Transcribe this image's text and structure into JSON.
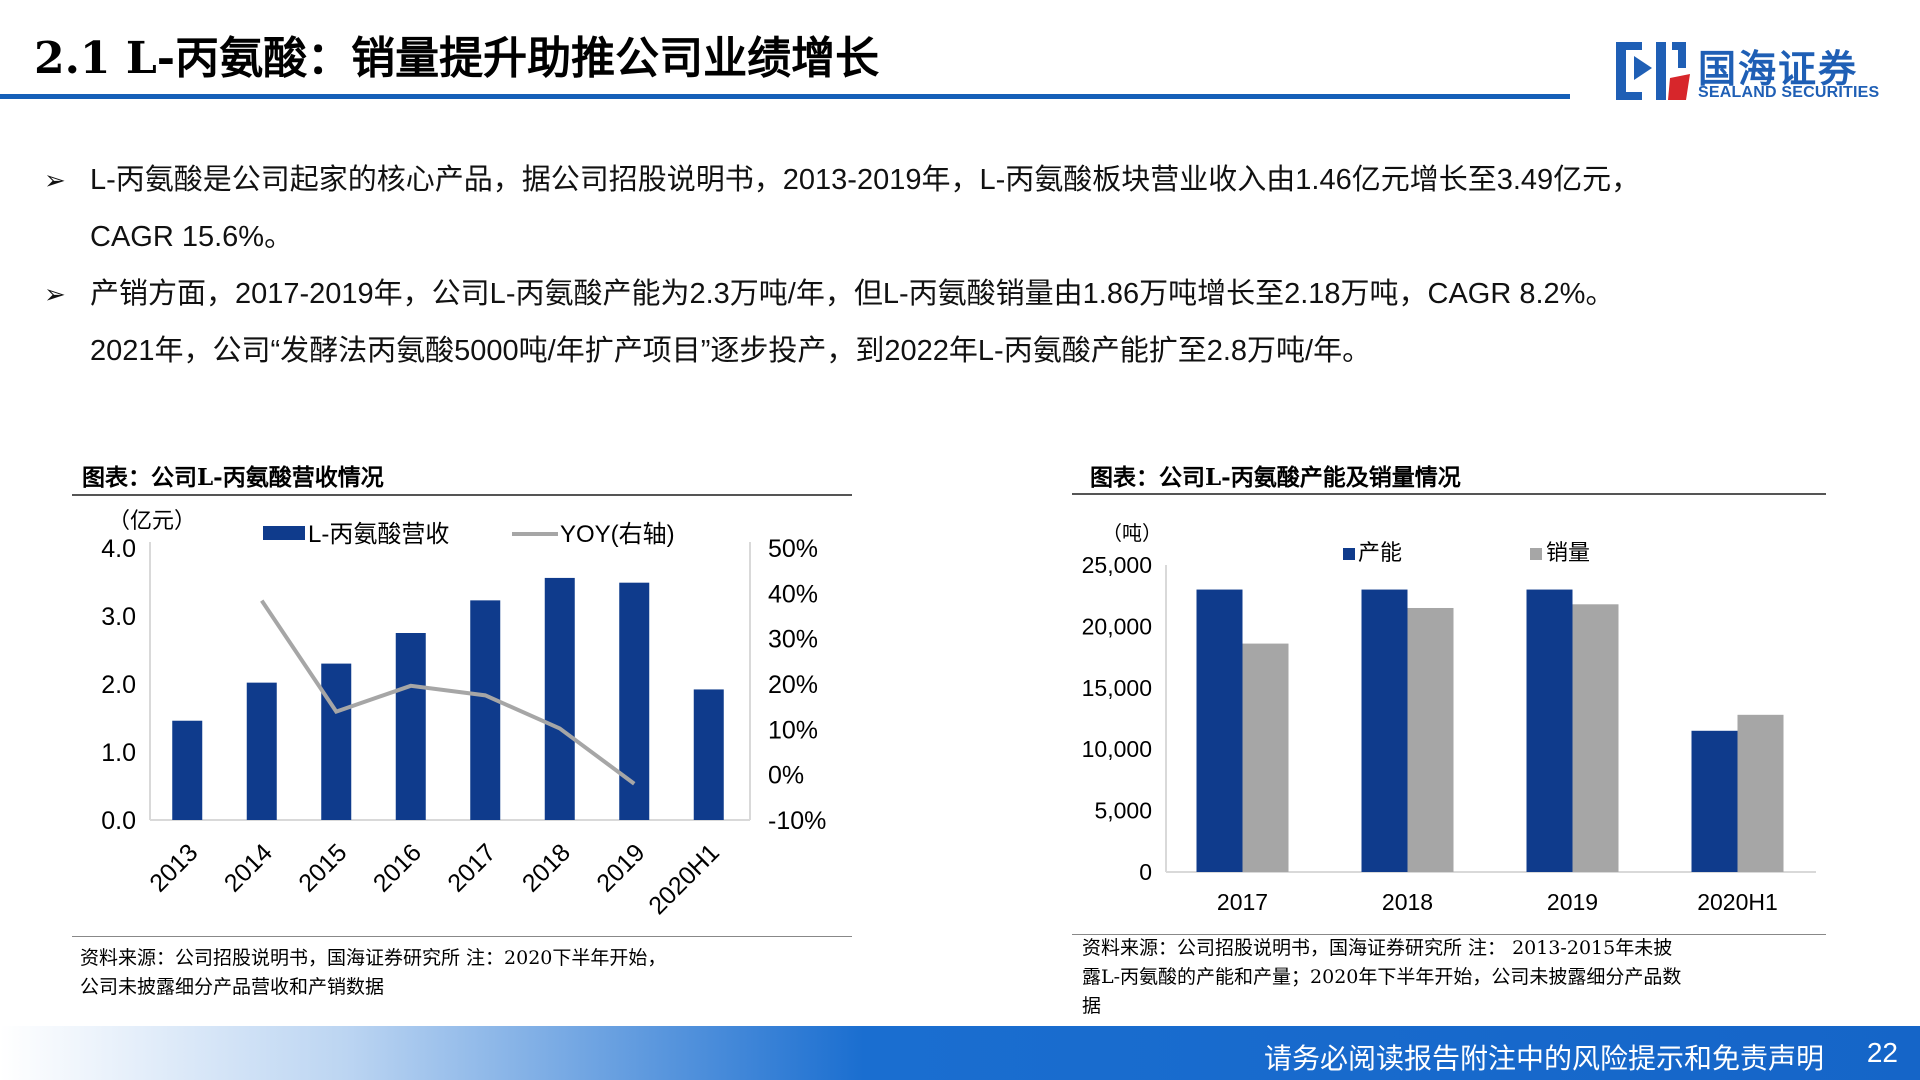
{
  "header": {
    "title": "2.1 L-丙氨酸：销量提升助推公司业绩增长",
    "logo_cn": "国海证券",
    "logo_en": "SEALAND SECURITIES",
    "accent_color": "#1560b8"
  },
  "bullets": [
    {
      "mark": "➢",
      "line1": "L-丙氨酸是公司起家的核心产品，据公司招股说明书，2013-2019年，L-丙氨酸板块营业收入由1.46亿元增长至3.49亿元，",
      "line2": "CAGR 15.6%。"
    },
    {
      "mark": "➢",
      "line1": "产销方面，2017-2019年，公司L-丙氨酸产能为2.3万吨/年，但L-丙氨酸销量由1.86万吨增长至2.18万吨，CAGR 8.2%。",
      "line2": "2021年，公司“发酵法丙氨酸5000吨/年扩产项目”逐步投产，到2022年L-丙氨酸产能扩至2.8万吨/年。"
    }
  ],
  "chart_left": {
    "title": "图表：公司L-丙氨酸营收情况",
    "source_line1": "资料来源：公司招股说明书，国海证券研究所  注：2020下半年开始，",
    "source_line2": "公司未披露细分产品营收和产销数据"
  },
  "chart_right": {
    "title": "图表：公司L-丙氨酸产能及销量情况",
    "source_line1": "资料来源：公司招股说明书，国海证券研究所  注： 2013-2015年未披",
    "source_line2": "露L-丙氨酸的产能和产量；2020年下半年开始，公司未披露细分产品数",
    "source_line3": "据"
  },
  "chart_data": [
    {
      "type": "bar",
      "categories": [
        "2013",
        "2014",
        "2015",
        "2016",
        "2017",
        "2018",
        "2019",
        "2020H1"
      ],
      "series": [
        {
          "name": "L-丙氨酸营收",
          "values": [
            1.46,
            2.02,
            2.3,
            2.75,
            3.23,
            3.56,
            3.49,
            1.92
          ],
          "color": "#0f3b8c",
          "axis": "left"
        },
        {
          "name": "YOY(右轴)",
          "type": "line",
          "values": [
            null,
            38.4,
            13.9,
            19.6,
            17.5,
            10.2,
            -2.0,
            null
          ],
          "color": "#a6a6a6",
          "axis": "right"
        }
      ],
      "yunit": "（亿元）",
      "ylim": [
        0,
        4
      ],
      "yticks": [
        "4.0",
        "3.0",
        "2.0",
        "1.0",
        "0.0"
      ],
      "y2lim": [
        -10,
        50
      ],
      "y2ticks": [
        "50%",
        "40%",
        "30%",
        "20%",
        "10%",
        "0%",
        "-10%"
      ],
      "legend": "top"
    },
    {
      "type": "bar",
      "categories": [
        "2017",
        "2018",
        "2019",
        "2020H1"
      ],
      "series": [
        {
          "name": "产能",
          "values": [
            23000,
            23000,
            23000,
            11500
          ],
          "color": "#0f3b8c"
        },
        {
          "name": "销量",
          "values": [
            18600,
            21500,
            21800,
            12800
          ],
          "color": "#a6a6a6"
        }
      ],
      "yunit": "（吨）",
      "ylim": [
        0,
        25000
      ],
      "yticks": [
        "25,000",
        "20,000",
        "15,000",
        "10,000",
        "5,000",
        "0"
      ],
      "legend": "top"
    }
  ],
  "footer": {
    "disclaimer": "请务必阅读报告附注中的风险提示和免责声明",
    "page": "22"
  }
}
